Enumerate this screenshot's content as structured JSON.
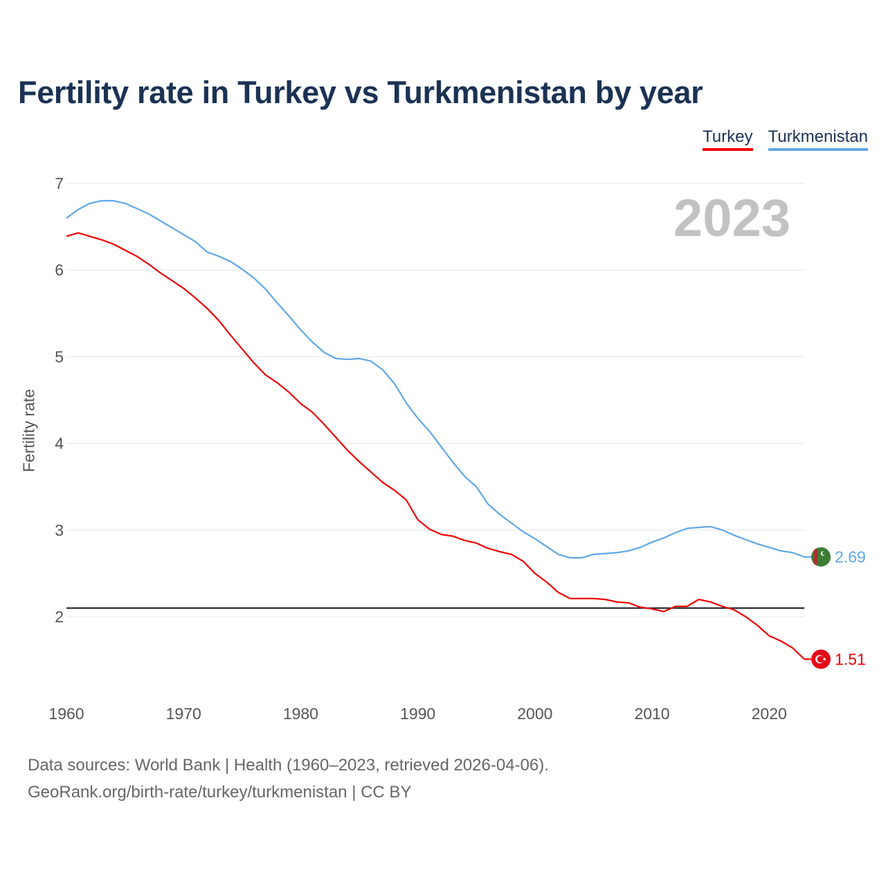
{
  "title": "Fertility rate in Turkey vs Turkmenistan by year",
  "legend": [
    {
      "name": "Turkey",
      "color": "#ee0000"
    },
    {
      "name": "Turkmenistan",
      "color": "#5fa7e6"
    }
  ],
  "year_label": "2023",
  "footer": {
    "line1": "Data sources: World Bank | Health (1960–2023, retrieved 2026-04-06).",
    "line2": "GeoRank.org/birth-rate/turkey/turkmenistan | CC BY"
  },
  "chart_data": {
    "type": "line",
    "title": "Fertility rate in Turkey vs Turkmenistan by year",
    "xlabel": "",
    "ylabel": "Fertility rate",
    "xlim": [
      1960,
      2023
    ],
    "ylim": [
      1,
      7
    ],
    "x_ticks": [
      1960,
      1970,
      1980,
      1990,
      2000,
      2010,
      2020
    ],
    "y_ticks": [
      2,
      3,
      4,
      5,
      6,
      7
    ],
    "grid": true,
    "reference_line": 2.1,
    "x": [
      1960,
      1961,
      1962,
      1963,
      1964,
      1965,
      1966,
      1967,
      1968,
      1969,
      1970,
      1971,
      1972,
      1973,
      1974,
      1975,
      1976,
      1977,
      1978,
      1979,
      1980,
      1981,
      1982,
      1983,
      1984,
      1985,
      1986,
      1987,
      1988,
      1989,
      1990,
      1991,
      1992,
      1993,
      1994,
      1995,
      1996,
      1997,
      1998,
      1999,
      2000,
      2001,
      2002,
      2003,
      2004,
      2005,
      2006,
      2007,
      2008,
      2009,
      2010,
      2011,
      2012,
      2013,
      2014,
      2015,
      2016,
      2017,
      2018,
      2019,
      2020,
      2021,
      2022,
      2023
    ],
    "series": [
      {
        "name": "Turkey",
        "color": "#ee0000",
        "end_label": "1.51",
        "values": [
          6.39,
          6.43,
          6.39,
          6.35,
          6.3,
          6.23,
          6.16,
          6.07,
          5.97,
          5.88,
          5.79,
          5.68,
          5.56,
          5.42,
          5.25,
          5.09,
          4.93,
          4.79,
          4.7,
          4.59,
          4.46,
          4.36,
          4.22,
          4.07,
          3.92,
          3.79,
          3.67,
          3.55,
          3.46,
          3.35,
          3.12,
          3.01,
          2.95,
          2.93,
          2.88,
          2.85,
          2.79,
          2.75,
          2.72,
          2.64,
          2.5,
          2.4,
          2.28,
          2.21,
          2.21,
          2.21,
          2.2,
          2.17,
          2.16,
          2.11,
          2.09,
          2.06,
          2.12,
          2.12,
          2.2,
          2.17,
          2.12,
          2.08,
          2.0,
          1.9,
          1.78,
          1.72,
          1.64,
          1.51
        ]
      },
      {
        "name": "Turkmenistan",
        "color": "#5fa7e6",
        "end_label": "2.69",
        "values": [
          6.6,
          6.7,
          6.77,
          6.8,
          6.8,
          6.77,
          6.71,
          6.65,
          6.57,
          6.49,
          6.41,
          6.33,
          6.21,
          6.16,
          6.1,
          6.01,
          5.91,
          5.78,
          5.62,
          5.47,
          5.31,
          5.17,
          5.05,
          4.98,
          4.97,
          4.98,
          4.95,
          4.85,
          4.69,
          4.47,
          4.29,
          4.14,
          3.96,
          3.78,
          3.62,
          3.5,
          3.3,
          3.18,
          3.08,
          2.98,
          2.9,
          2.81,
          2.72,
          2.68,
          2.68,
          2.72,
          2.73,
          2.74,
          2.76,
          2.8,
          2.86,
          2.91,
          2.97,
          3.02,
          3.03,
          3.04,
          3.0,
          2.94,
          2.89,
          2.84,
          2.8,
          2.76,
          2.74,
          2.69
        ]
      }
    ]
  }
}
